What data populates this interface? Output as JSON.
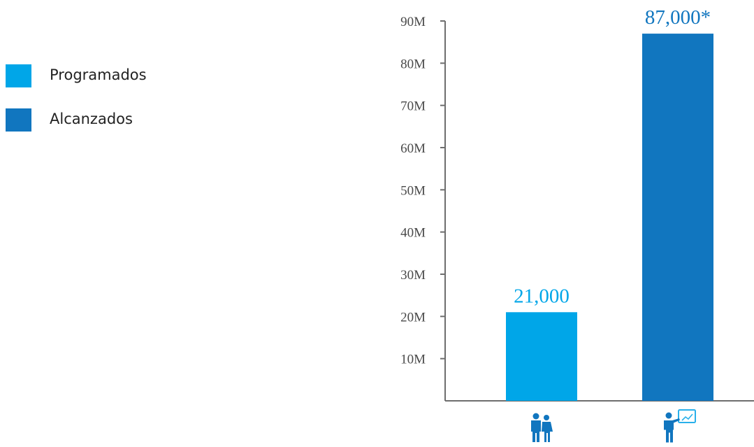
{
  "chart_data": {
    "type": "bar",
    "categories": [
      "Programados",
      "Alcanzados"
    ],
    "values": [
      21,
      87
    ],
    "value_labels": [
      "21,000",
      "87,000*"
    ],
    "category_icons": [
      "people-icon",
      "teacher-whiteboard-icon"
    ],
    "ylim": [
      0,
      90
    ],
    "yticks": [
      10,
      20,
      30,
      40,
      50,
      60,
      70,
      80,
      90
    ],
    "ytick_labels": [
      "10M",
      "20M",
      "30M",
      "40M",
      "50M",
      "60M",
      "70M",
      "80M",
      "90M"
    ],
    "title": "",
    "xlabel": "",
    "ylabel": "",
    "grid": false,
    "legend_position": "top-left",
    "colors": [
      "#00a6e8",
      "#1176bf"
    ],
    "axis_color": "#6e6e6e"
  },
  "legend": {
    "items": [
      {
        "label": "Programados",
        "color": "#00a6e8"
      },
      {
        "label": "Alcanzados",
        "color": "#1176bf"
      }
    ]
  }
}
